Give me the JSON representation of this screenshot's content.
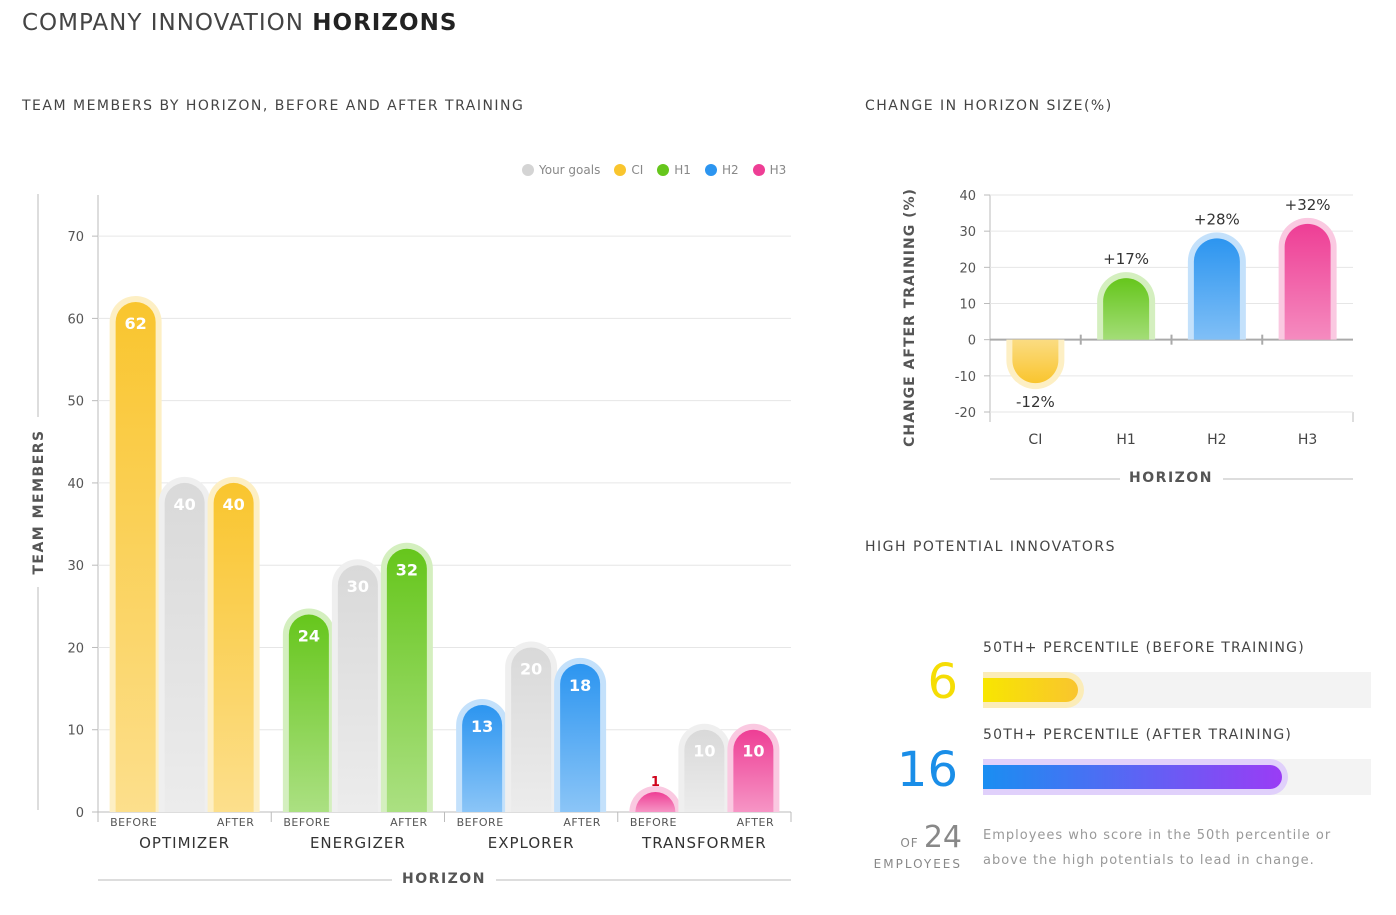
{
  "page": {
    "title_light": "COMPANY INNOVATION",
    "title_bold": "HORIZONS"
  },
  "colors": {
    "CI": "#f9c52e",
    "H1": "#66c61c",
    "H2": "#2c95f0",
    "H3": "#ee3e95",
    "goal": "#d4d4d4"
  },
  "legend": [
    {
      "label": "Your goals",
      "key": "goal"
    },
    {
      "label": "CI",
      "key": "CI"
    },
    {
      "label": "H1",
      "key": "H1"
    },
    {
      "label": "H2",
      "key": "H2"
    },
    {
      "label": "H3",
      "key": "H3"
    }
  ],
  "chart_data": [
    {
      "type": "bar",
      "title": "TEAM MEMBERS BY HORIZON, BEFORE AND AFTER TRAINING",
      "xlabel": "HORIZON",
      "ylabel": "TEAM MEMBERS",
      "ylim": [
        0,
        75
      ],
      "yticks": [
        0,
        10,
        20,
        30,
        40,
        50,
        60,
        70
      ],
      "grid": true,
      "legend_position": "top-right",
      "sublabels": [
        "BEFORE",
        "AFTER"
      ],
      "groups": [
        {
          "category": "OPTIMIZER",
          "key": "CI",
          "before": 62,
          "goal": 40,
          "after": 40
        },
        {
          "category": "ENERGIZER",
          "key": "H1",
          "before": 24,
          "goal": 30,
          "after": 32
        },
        {
          "category": "EXPLORER",
          "key": "H2",
          "before": 13,
          "goal": 20,
          "after": 18
        },
        {
          "category": "TRANSFORMER",
          "key": "H3",
          "before": 1,
          "goal": 10,
          "after": 10
        }
      ]
    },
    {
      "type": "bar",
      "title": "CHANGE IN HORIZON SIZE(%)",
      "xlabel": "HORIZON",
      "ylabel": "CHANGE AFTER TRAINING (%)",
      "ylim": [
        -20,
        40
      ],
      "yticks": [
        -20,
        -10,
        0,
        10,
        20,
        30,
        40
      ],
      "grid": true,
      "categories": [
        "CI",
        "H1",
        "H2",
        "H3"
      ],
      "values": [
        -12,
        17,
        28,
        32
      ],
      "labels": [
        "-12%",
        "+17%",
        "+28%",
        "+32%"
      ]
    }
  ],
  "high_potential": {
    "title": "HIGH POTENTIAL INNOVATORS",
    "before_label": "50TH+ PERCENTILE (BEFORE TRAINING)",
    "before_value": "6",
    "before_fraction": 0.25,
    "after_label": "50TH+ PERCENTILE (AFTER TRAINING)",
    "after_value": "16",
    "after_fraction": 0.6667,
    "of_word": "OF",
    "total": "24",
    "employees_word": "EMPLOYEES",
    "description": "Employees who score in the 50th percentile or above the high potentials to lead in change."
  }
}
